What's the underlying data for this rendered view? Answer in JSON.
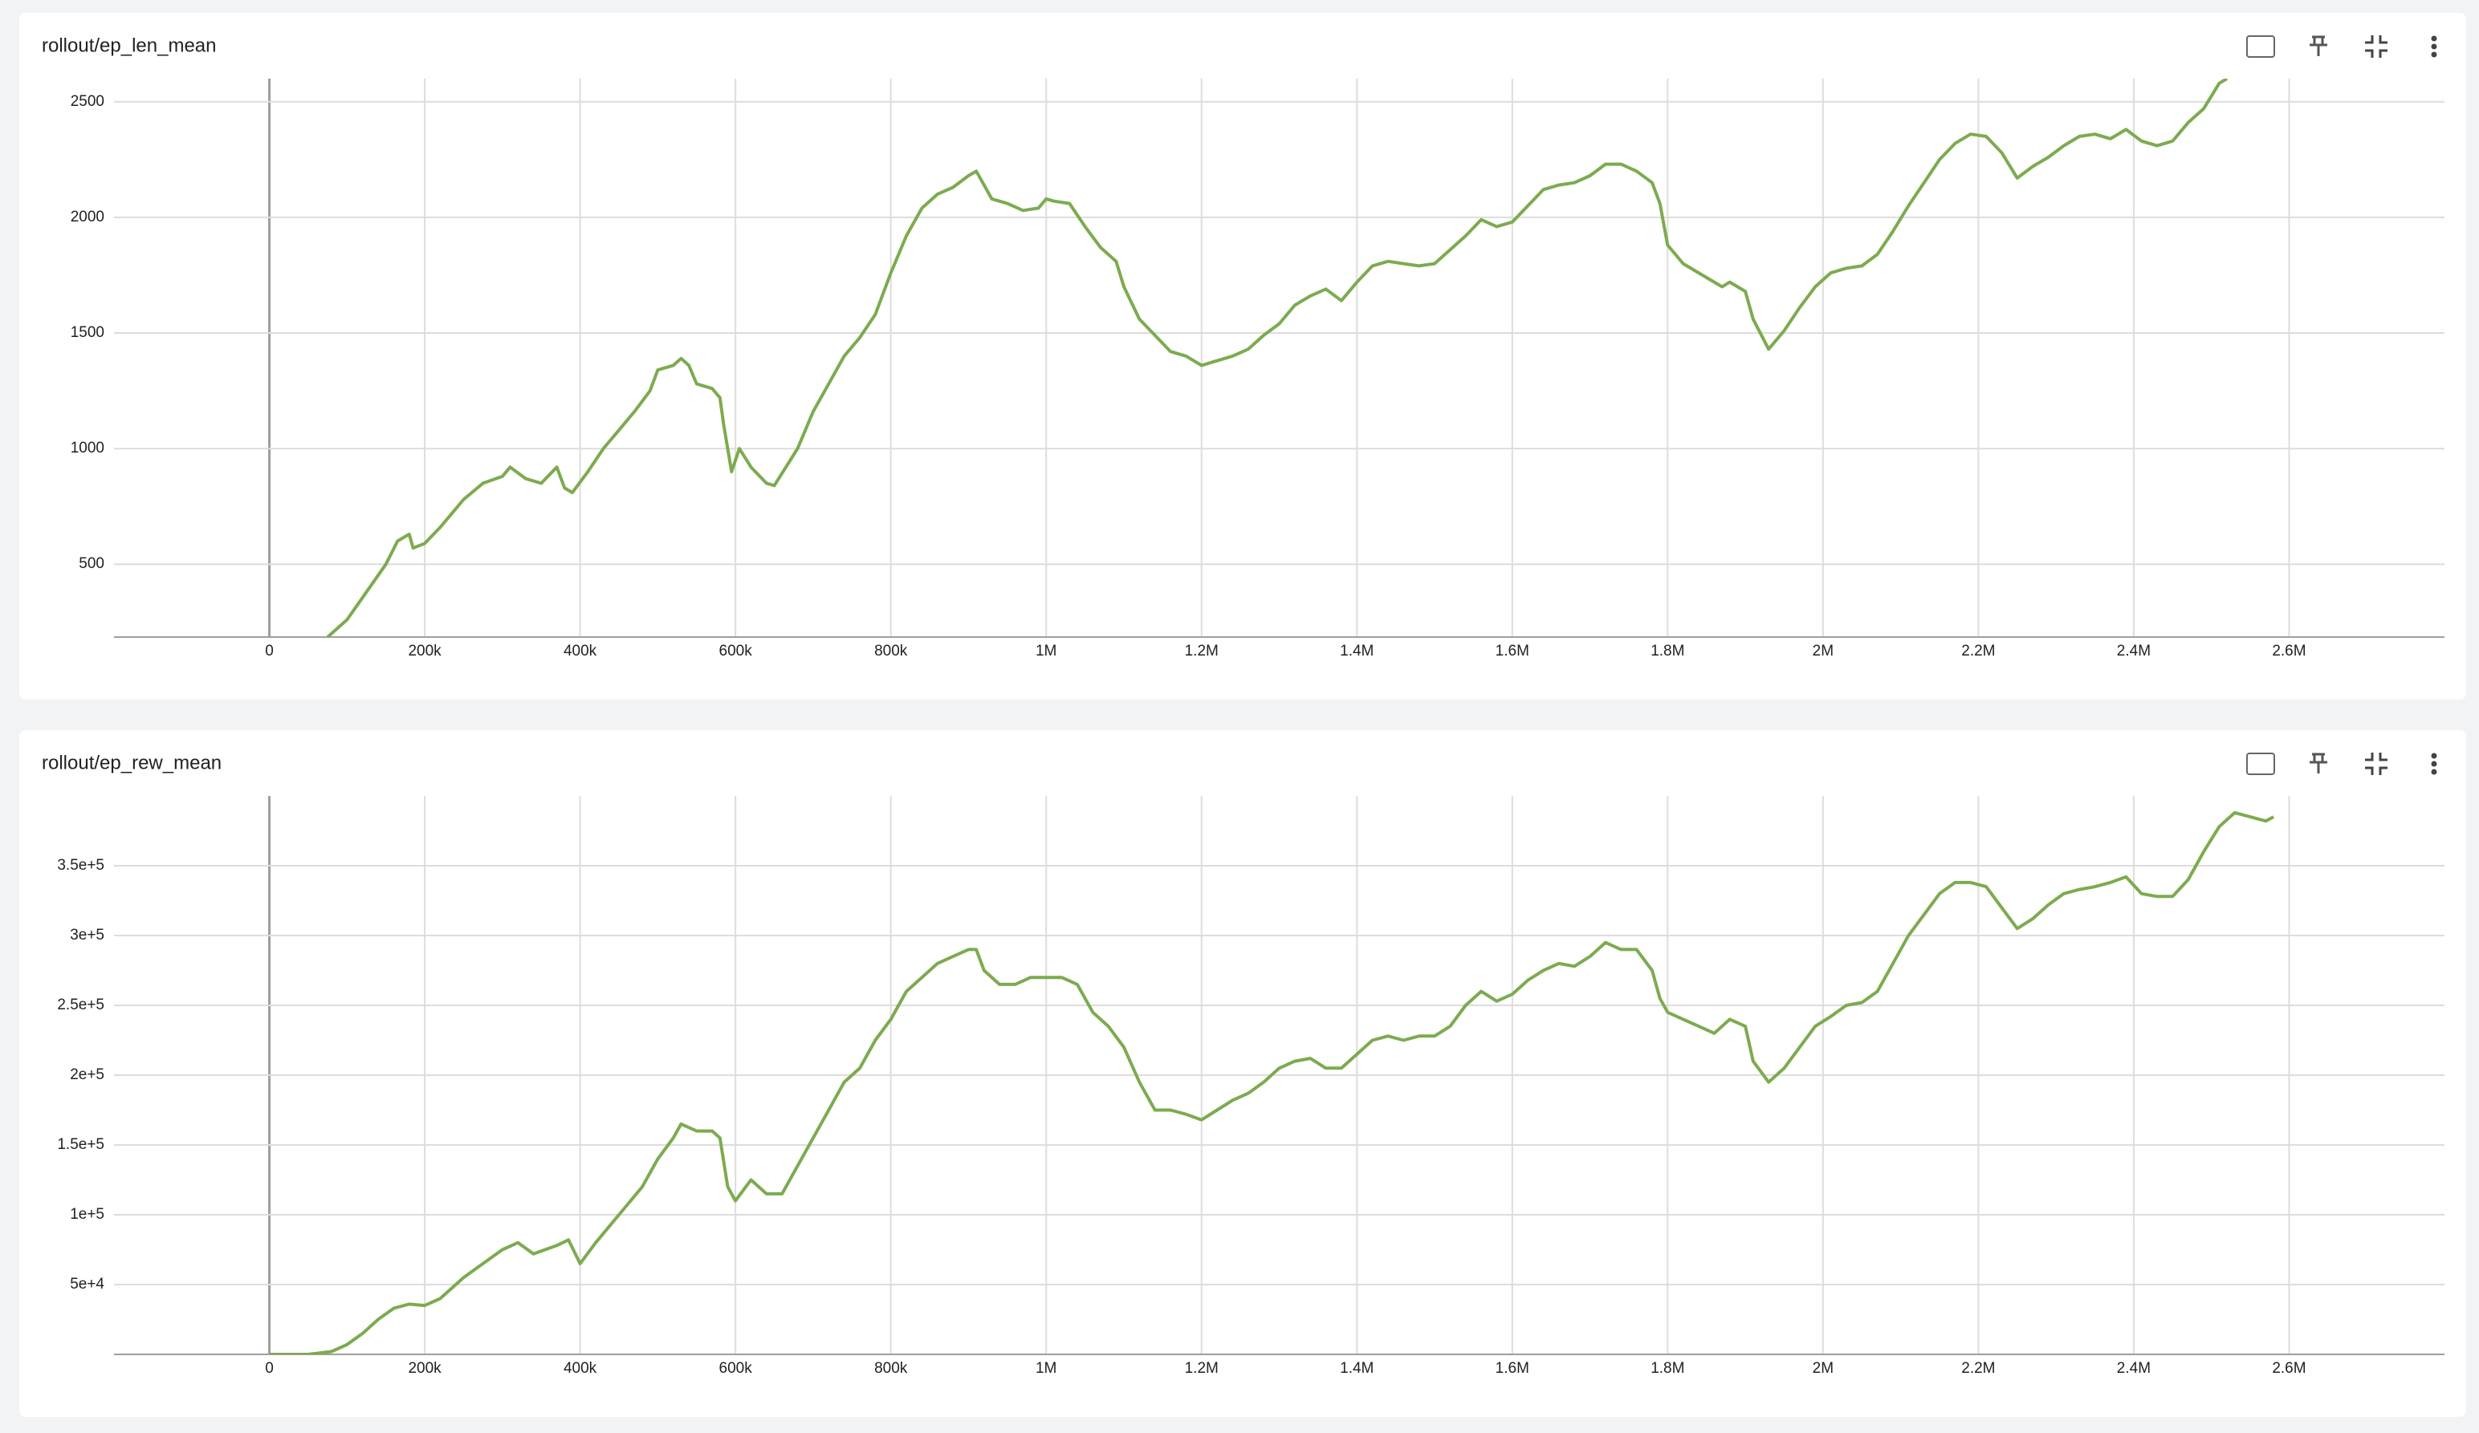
{
  "chart_data": [
    {
      "type": "line",
      "title": "rollout/ep_len_mean",
      "color": "#7cab4f",
      "grid": true,
      "xlim": [
        -200000,
        2800000
      ],
      "ylim": [
        185,
        2600
      ],
      "xticks": [
        0,
        {
          "value": 200000,
          "label": "200k"
        },
        {
          "value": 400000,
          "label": "400k"
        },
        {
          "value": 600000,
          "label": "600k"
        },
        {
          "value": 800000,
          "label": "800k"
        },
        {
          "value": 1000000,
          "label": "1M"
        },
        {
          "value": 1200000,
          "label": "1.2M"
        },
        {
          "value": 1400000,
          "label": "1.4M"
        },
        {
          "value": 1600000,
          "label": "1.6M"
        },
        {
          "value": 1800000,
          "label": "1.8M"
        },
        {
          "value": 2000000,
          "label": "2M"
        },
        {
          "value": 2200000,
          "label": "2.2M"
        },
        {
          "value": 2400000,
          "label": "2.4M"
        },
        {
          "value": 2600000,
          "label": "2.6M"
        }
      ],
      "yticks": [
        500,
        1000,
        1500,
        2000,
        2500
      ],
      "x": [
        75000,
        100000,
        125000,
        150000,
        165000,
        180000,
        185000,
        200000,
        220000,
        250000,
        275000,
        300000,
        310000,
        330000,
        350000,
        370000,
        380000,
        390000,
        410000,
        430000,
        450000,
        470000,
        490000,
        500000,
        520000,
        530000,
        540000,
        550000,
        570000,
        580000,
        585000,
        595000,
        605000,
        620000,
        640000,
        650000,
        665000,
        680000,
        700000,
        720000,
        740000,
        760000,
        780000,
        800000,
        820000,
        840000,
        860000,
        880000,
        900000,
        910000,
        920000,
        930000,
        950000,
        970000,
        990000,
        1000000,
        1010000,
        1030000,
        1050000,
        1070000,
        1090000,
        1100000,
        1120000,
        1140000,
        1160000,
        1180000,
        1200000,
        1220000,
        1240000,
        1260000,
        1280000,
        1300000,
        1320000,
        1340000,
        1360000,
        1380000,
        1400000,
        1420000,
        1440000,
        1460000,
        1480000,
        1500000,
        1520000,
        1540000,
        1560000,
        1580000,
        1600000,
        1620000,
        1640000,
        1660000,
        1680000,
        1700000,
        1720000,
        1740000,
        1760000,
        1780000,
        1790000,
        1800000,
        1820000,
        1840000,
        1860000,
        1870000,
        1880000,
        1900000,
        1910000,
        1930000,
        1950000,
        1970000,
        1990000,
        2010000,
        2030000,
        2050000,
        2070000,
        2090000,
        2110000,
        2130000,
        2150000,
        2170000,
        2190000,
        2210000,
        2230000,
        2250000,
        2270000,
        2290000,
        2310000,
        2330000,
        2350000,
        2370000,
        2390000,
        2410000,
        2430000,
        2450000,
        2470000,
        2490000,
        2510000,
        2520000
      ],
      "values": [
        185,
        260,
        380,
        500,
        600,
        630,
        570,
        590,
        660,
        780,
        850,
        880,
        920,
        870,
        850,
        920,
        830,
        810,
        900,
        1000,
        1080,
        1160,
        1250,
        1340,
        1360,
        1390,
        1360,
        1280,
        1260,
        1220,
        1100,
        900,
        1000,
        920,
        850,
        840,
        920,
        1000,
        1160,
        1280,
        1400,
        1480,
        1580,
        1760,
        1920,
        2040,
        2100,
        2130,
        2180,
        2200,
        2140,
        2080,
        2060,
        2030,
        2040,
        2080,
        2070,
        2060,
        1960,
        1870,
        1810,
        1700,
        1560,
        1490,
        1420,
        1400,
        1360,
        1380,
        1400,
        1430,
        1490,
        1540,
        1620,
        1660,
        1690,
        1640,
        1720,
        1790,
        1810,
        1800,
        1790,
        1800,
        1860,
        1920,
        1990,
        1960,
        1980,
        2050,
        2120,
        2140,
        2150,
        2180,
        2230,
        2230,
        2200,
        2150,
        2060,
        1880,
        1800,
        1760,
        1720,
        1700,
        1720,
        1680,
        1560,
        1430,
        1510,
        1610,
        1700,
        1760,
        1780,
        1790,
        1840,
        1940,
        2050,
        2150,
        2250,
        2320,
        2360,
        2350,
        2280,
        2170,
        2220,
        2260,
        2310,
        2350,
        2360,
        2340,
        2380,
        2330,
        2310,
        2330,
        2410,
        2470,
        2580,
        2600
      ]
    },
    {
      "type": "line",
      "title": "rollout/ep_rew_mean",
      "color": "#7cab4f",
      "grid": true,
      "xlim": [
        -200000,
        2800000
      ],
      "ylim": [
        0,
        400000
      ],
      "xticks": [
        0,
        {
          "value": 200000,
          "label": "200k"
        },
        {
          "value": 400000,
          "label": "400k"
        },
        {
          "value": 600000,
          "label": "600k"
        },
        {
          "value": 800000,
          "label": "800k"
        },
        {
          "value": 1000000,
          "label": "1M"
        },
        {
          "value": 1200000,
          "label": "1.2M"
        },
        {
          "value": 1400000,
          "label": "1.4M"
        },
        {
          "value": 1600000,
          "label": "1.6M"
        },
        {
          "value": 1800000,
          "label": "1.8M"
        },
        {
          "value": 2000000,
          "label": "2M"
        },
        {
          "value": 2200000,
          "label": "2.2M"
        },
        {
          "value": 2400000,
          "label": "2.4M"
        },
        {
          "value": 2600000,
          "label": "2.6M"
        }
      ],
      "yticks": [
        {
          "value": 50000,
          "label": "5e+4"
        },
        {
          "value": 100000,
          "label": "1e+5"
        },
        {
          "value": 150000,
          "label": "1.5e+5"
        },
        {
          "value": 200000,
          "label": "2e+5"
        },
        {
          "value": 250000,
          "label": "2.5e+5"
        },
        {
          "value": 300000,
          "label": "3e+5"
        },
        {
          "value": 350000,
          "label": "3.5e+5"
        }
      ],
      "x": [
        0,
        50000,
        80000,
        100000,
        120000,
        140000,
        160000,
        180000,
        200000,
        220000,
        250000,
        275000,
        300000,
        320000,
        340000,
        370000,
        385000,
        400000,
        420000,
        450000,
        480000,
        500000,
        520000,
        530000,
        550000,
        570000,
        580000,
        590000,
        600000,
        620000,
        640000,
        660000,
        680000,
        700000,
        720000,
        740000,
        760000,
        780000,
        800000,
        820000,
        840000,
        860000,
        880000,
        900000,
        910000,
        920000,
        940000,
        960000,
        980000,
        1000000,
        1020000,
        1040000,
        1060000,
        1080000,
        1100000,
        1120000,
        1140000,
        1160000,
        1180000,
        1200000,
        1220000,
        1240000,
        1260000,
        1280000,
        1300000,
        1320000,
        1340000,
        1360000,
        1380000,
        1400000,
        1420000,
        1440000,
        1460000,
        1480000,
        1500000,
        1520000,
        1540000,
        1560000,
        1580000,
        1600000,
        1620000,
        1640000,
        1660000,
        1680000,
        1700000,
        1720000,
        1740000,
        1760000,
        1780000,
        1790000,
        1800000,
        1820000,
        1840000,
        1860000,
        1880000,
        1900000,
        1910000,
        1930000,
        1950000,
        1970000,
        1990000,
        2010000,
        2030000,
        2050000,
        2070000,
        2090000,
        2110000,
        2130000,
        2150000,
        2170000,
        2190000,
        2210000,
        2230000,
        2250000,
        2270000,
        2290000,
        2310000,
        2330000,
        2350000,
        2370000,
        2390000,
        2410000,
        2430000,
        2450000,
        2470000,
        2490000,
        2510000,
        2530000,
        2550000,
        2570000,
        2580000
      ],
      "values": [
        0,
        0,
        2000,
        7000,
        15000,
        25000,
        33000,
        36000,
        35000,
        40000,
        55000,
        65000,
        75000,
        80000,
        72000,
        78000,
        82000,
        65000,
        80000,
        100000,
        120000,
        140000,
        155000,
        165000,
        160000,
        160000,
        155000,
        120000,
        110000,
        125000,
        115000,
        115000,
        135000,
        155000,
        175000,
        195000,
        205000,
        225000,
        240000,
        260000,
        270000,
        280000,
        285000,
        290000,
        290000,
        275000,
        265000,
        265000,
        270000,
        270000,
        270000,
        265000,
        245000,
        235000,
        220000,
        195000,
        175000,
        175000,
        172000,
        168000,
        175000,
        182000,
        187000,
        195000,
        205000,
        210000,
        212000,
        205000,
        205000,
        215000,
        225000,
        228000,
        225000,
        228000,
        228000,
        235000,
        250000,
        260000,
        253000,
        258000,
        268000,
        275000,
        280000,
        278000,
        285000,
        295000,
        290000,
        290000,
        275000,
        255000,
        245000,
        240000,
        235000,
        230000,
        240000,
        235000,
        210000,
        195000,
        205000,
        220000,
        235000,
        242000,
        250000,
        252000,
        260000,
        280000,
        300000,
        315000,
        330000,
        338000,
        338000,
        335000,
        320000,
        305000,
        312000,
        322000,
        330000,
        333000,
        335000,
        338000,
        342000,
        330000,
        328000,
        328000,
        340000,
        360000,
        378000,
        388000,
        385000,
        382000,
        385000
      ]
    }
  ]
}
